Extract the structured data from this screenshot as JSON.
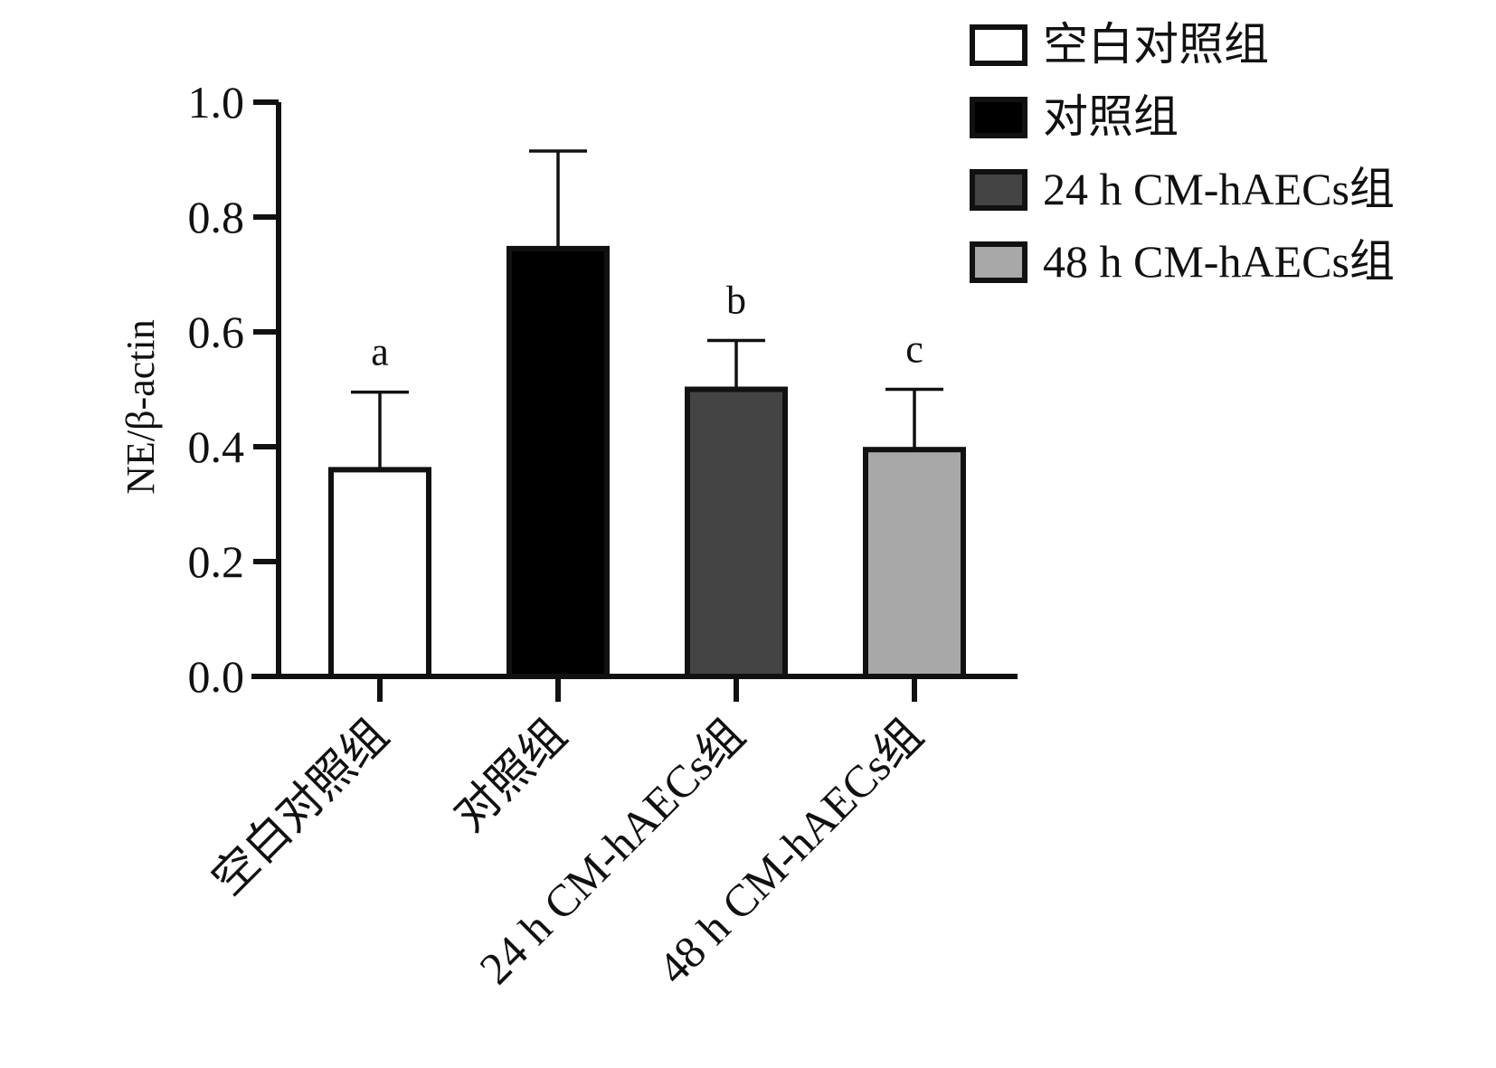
{
  "chart_data": {
    "type": "bar",
    "ylabel": "NE/β-actin",
    "ylim": [
      0,
      1.0
    ],
    "yticks": [
      "0.0",
      "0.2",
      "0.4",
      "0.6",
      "0.8",
      "1.0"
    ],
    "categories": [
      "空白对照组",
      "对照组",
      "24 h CM-hAECs组",
      "48 h CM-hAECs组"
    ],
    "values": [
      0.36,
      0.745,
      0.5,
      0.395
    ],
    "errors": [
      0.135,
      0.17,
      0.085,
      0.105
    ],
    "annotations": [
      "a",
      "",
      "b",
      "c"
    ],
    "colors": [
      "#ffffff",
      "#000000",
      "#444444",
      "#a8a8a8"
    ],
    "legend": {
      "position": "top-right",
      "items": [
        "空白对照组",
        "对照组",
        "24 h CM-hAECs组",
        "48 h CM-hAECs组"
      ]
    },
    "grid": false
  }
}
